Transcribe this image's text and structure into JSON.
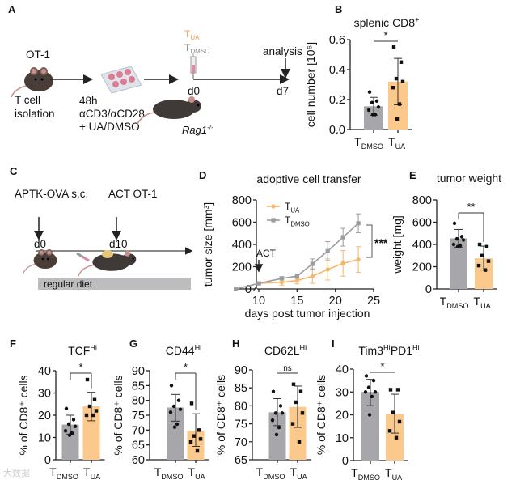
{
  "panels": {
    "A": {
      "label": "A",
      "ot1": "OT-1",
      "isolation_line1": "T cell",
      "isolation_line2": "isolation",
      "culture_line1": "48h",
      "culture_line2": "αCD3/αCD28",
      "culture_line3": "+ UA/DMSO",
      "tua_main": "T",
      "tua_sub": "UA",
      "tdmso_main": "T",
      "tdmso_sub": "DMSO",
      "d0": "d0",
      "d7": "d7",
      "analysis": "analysis",
      "recipient_main": "Rag1",
      "recipient_sup": "-/-"
    },
    "B": {
      "label": "B"
    },
    "C": {
      "label": "C",
      "injection": "APTK-OVA s.c.",
      "act": "ACT OT-1",
      "d0": "d0",
      "d10": "d10",
      "diet": "regular diet"
    },
    "D": {
      "label": "D"
    },
    "E": {
      "label": "E"
    },
    "F": {
      "label": "F"
    },
    "G": {
      "label": "G"
    },
    "H": {
      "label": "H"
    },
    "I": {
      "label": "I"
    }
  },
  "watermark": "大数据",
  "colors": {
    "dmso": "#a7a6ab",
    "ua": "#fbc98c",
    "ua_line": "#f7b66a",
    "dmso_line": "#9c9ca0"
  },
  "chart_data": [
    {
      "panel": "B",
      "type": "bar",
      "title": "splenic CD8",
      "title_sup": "+",
      "ylabel": "cell number [10⁶]",
      "ylim": [
        0,
        0.6
      ],
      "yticks": [
        "0.0",
        "0.2",
        "0.4",
        "0.6"
      ],
      "ytick_values": [
        0,
        0.2,
        0.4,
        0.6
      ],
      "categories": [
        {
          "main": "T",
          "sub": "DMSO"
        },
        {
          "main": "T",
          "sub": "UA"
        }
      ],
      "means": [
        0.155,
        0.32
      ],
      "sd_low": [
        0.095,
        0.165
      ],
      "sd_high": [
        0.215,
        0.475
      ],
      "points": [
        [
          0.25,
          0.19,
          0.18,
          0.15,
          0.13,
          0.1,
          0.1
        ],
        [
          0.55,
          0.45,
          0.34,
          0.32,
          0.28,
          0.17,
          0.07
        ]
      ],
      "significance": "*"
    },
    {
      "panel": "D",
      "type": "line",
      "title": "adoptive cell transfer",
      "xlabel": "days post tumor injection",
      "ylabel": "tumor size [mm³]",
      "xlim": [
        7,
        25
      ],
      "xticks": [
        10,
        15,
        20,
        25
      ],
      "ylim": [
        0,
        800
      ],
      "yticks": [
        0,
        200,
        400,
        600,
        800
      ],
      "annotation": "ACT",
      "annotation_day": 10,
      "x": [
        7,
        10,
        13,
        15,
        17,
        19,
        21,
        23
      ],
      "series": [
        {
          "name_main": "T",
          "name_sub": "UA",
          "values": [
            0,
            50,
            60,
            75,
            115,
            175,
            230,
            265
          ],
          "err": [
            0,
            10,
            25,
            30,
            65,
            95,
            115,
            115
          ]
        },
        {
          "name_main": "T",
          "name_sub": "DMSO",
          "values": [
            0,
            50,
            95,
            115,
            225,
            340,
            465,
            590
          ],
          "err": [
            0,
            10,
            15,
            20,
            45,
            85,
            80,
            85
          ]
        }
      ],
      "significance": "***",
      "legend": "top-left"
    },
    {
      "panel": "E",
      "type": "bar",
      "title": "tumor weight",
      "title_sup": "",
      "ylabel": "weight [mg]",
      "ylim": [
        0,
        800
      ],
      "yticks": [
        "0",
        "200",
        "400",
        "600",
        "800"
      ],
      "ytick_values": [
        0,
        200,
        400,
        600,
        800
      ],
      "categories": [
        {
          "main": "T",
          "sub": "DMSO"
        },
        {
          "main": "T",
          "sub": "UA"
        }
      ],
      "means": [
        455,
        275
      ],
      "sd_low": [
        375,
        170
      ],
      "sd_high": [
        535,
        385
      ],
      "points": [
        [
          590,
          470,
          450,
          440,
          400,
          390,
          380
        ],
        [
          400,
          380,
          300,
          250,
          210,
          170
        ]
      ],
      "significance": "**"
    },
    {
      "panel": "F",
      "type": "bar",
      "title": "TCF",
      "title_sup": "Hi",
      "ylabel": "% of CD8⁺ cells",
      "ylim": [
        0,
        40
      ],
      "yticks": [
        "0",
        "10",
        "20",
        "30",
        "40"
      ],
      "ytick_values": [
        0,
        10,
        20,
        30,
        40
      ],
      "categories": [
        {
          "main": "T",
          "sub": "DMSO"
        },
        {
          "main": "T",
          "sub": "UA"
        }
      ],
      "means": [
        15.8,
        24
      ],
      "sd_low": [
        11.5,
        17.5
      ],
      "sd_high": [
        20,
        30.3
      ],
      "points": [
        [
          23,
          18,
          16,
          15,
          13,
          12,
          11
        ],
        [
          36,
          27,
          24,
          22,
          20,
          20
        ]
      ],
      "significance": "*"
    },
    {
      "panel": "G",
      "type": "bar",
      "title": "CD44",
      "title_sup": "Hi",
      "ylabel": "% of CD8⁺ cells",
      "ylim": [
        60,
        90
      ],
      "yticks": [
        "60",
        "65",
        "70",
        "75",
        "80",
        "85",
        "90"
      ],
      "ytick_values": [
        60,
        65,
        70,
        75,
        80,
        85,
        90
      ],
      "categories": [
        {
          "main": "T",
          "sub": "DMSO"
        },
        {
          "main": "T",
          "sub": "UA"
        }
      ],
      "means": [
        77.6,
        69.8
      ],
      "sd_low": [
        73,
        64.5
      ],
      "sd_high": [
        82,
        75.5
      ],
      "points": [
        [
          85,
          80,
          78,
          77,
          76,
          72,
          71
        ],
        [
          79,
          70,
          68,
          67,
          66,
          63
        ]
      ],
      "significance": "*"
    },
    {
      "panel": "H",
      "type": "bar",
      "title": "CD62L",
      "title_sup": "Hi",
      "ylabel": "% of CD8⁺ cells",
      "ylim": [
        65,
        90
      ],
      "yticks": [
        "65",
        "70",
        "75",
        "80",
        "85",
        "90"
      ],
      "ytick_values": [
        65,
        70,
        75,
        80,
        85,
        90
      ],
      "categories": [
        {
          "main": "T",
          "sub": "DMSO"
        },
        {
          "main": "T",
          "sub": "UA"
        }
      ],
      "means": [
        78.2,
        79.7
      ],
      "sd_low": [
        74.5,
        74
      ],
      "sd_high": [
        82,
        85.5
      ],
      "points": [
        [
          84,
          80,
          78,
          78,
          76,
          74,
          72
        ],
        [
          86,
          84,
          81,
          78,
          75,
          70
        ]
      ],
      "significance": "ns"
    },
    {
      "panel": "I",
      "type": "bar",
      "title": "Tim3",
      "title_sup": "Hi",
      "title2": "PD1",
      "title2_sup": "Hi",
      "ylabel": "% of CD8⁺ cells",
      "ylim": [
        0,
        40
      ],
      "yticks": [
        "0",
        "10",
        "20",
        "30",
        "40"
      ],
      "ytick_values": [
        0,
        10,
        20,
        30,
        40
      ],
      "categories": [
        {
          "main": "T",
          "sub": "DMSO"
        },
        {
          "main": "T",
          "sub": "UA"
        }
      ],
      "means": [
        30,
        20.4
      ],
      "sd_low": [
        24,
        12
      ],
      "sd_high": [
        35.5,
        29
      ],
      "points": [
        [
          37,
          35,
          32,
          30,
          30,
          28,
          20
        ],
        [
          31,
          31,
          21,
          17,
          13,
          10
        ]
      ],
      "significance": "*"
    }
  ]
}
